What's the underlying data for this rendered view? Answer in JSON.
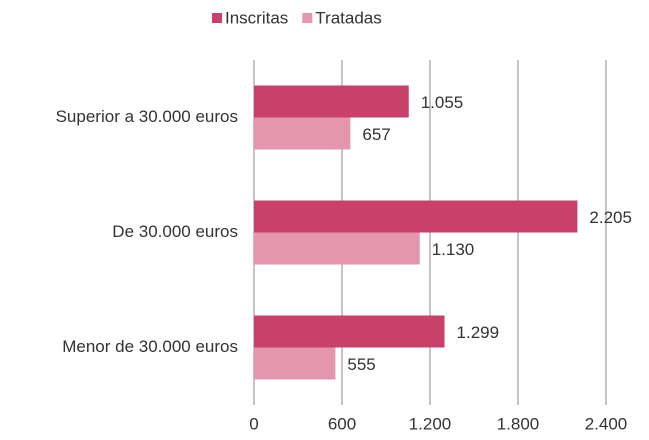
{
  "chart_data": {
    "type": "hbar",
    "categories": [
      "Superior a 30.000 euros",
      "De 30.000 euros",
      "Menor de 30.000 euros"
    ],
    "series": [
      {
        "name": "Inscritas",
        "color": "#c9406b",
        "values": [
          1055,
          2205,
          1299
        ],
        "value_labels": [
          "1.055",
          "2.205",
          "1.299"
        ]
      },
      {
        "name": "Tratadas",
        "color": "#e396ae",
        "values": [
          657,
          1130,
          555
        ],
        "value_labels": [
          "657",
          "1.130",
          "555"
        ]
      }
    ],
    "xlim": [
      0,
      2400
    ],
    "xticks": [
      0,
      600,
      {
        "value": 1200,
        "label": "1.200"
      },
      {
        "value": 1800,
        "label": "1.800"
      },
      {
        "value": 2400,
        "label": "2.400"
      }
    ],
    "grid": true,
    "legend": "top"
  }
}
